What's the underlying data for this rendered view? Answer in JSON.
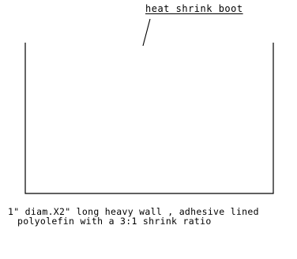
{
  "callout": {
    "label": "heat shrink boot"
  },
  "caption": {
    "line1": "1\" diam.X2\" long heavy wall , adhesive lined",
    "line2": "polyolefin with a 3:1 shrink ratio"
  },
  "colors": {
    "ink": "#000000",
    "background": "#ffffff"
  }
}
